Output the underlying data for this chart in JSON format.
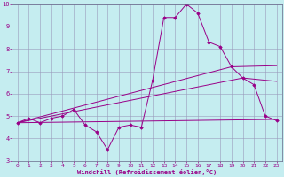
{
  "xlabel": "Windchill (Refroidissement éolien,°C)",
  "background_color": "#c5edf0",
  "grid_color": "#9999bb",
  "line_color": "#990088",
  "spine_color": "#666688",
  "xlim": [
    -0.5,
    23.5
  ],
  "ylim": [
    3,
    10
  ],
  "xticks": [
    0,
    1,
    2,
    3,
    4,
    5,
    6,
    7,
    8,
    9,
    10,
    11,
    12,
    13,
    14,
    15,
    16,
    17,
    18,
    19,
    20,
    21,
    22,
    23
  ],
  "yticks": [
    3,
    4,
    5,
    6,
    7,
    8,
    9,
    10
  ],
  "line1_x": [
    0,
    1,
    2,
    3,
    4,
    5,
    6,
    7,
    8,
    9,
    10,
    11,
    12,
    13,
    14,
    15,
    16,
    17,
    18,
    19,
    20,
    21,
    22,
    23
  ],
  "line1_y": [
    4.7,
    4.9,
    4.7,
    4.9,
    5.0,
    5.3,
    4.6,
    4.3,
    3.5,
    4.5,
    4.6,
    4.5,
    6.6,
    9.4,
    9.4,
    10.0,
    9.6,
    8.3,
    8.1,
    7.2,
    6.7,
    6.4,
    5.0,
    4.8
  ],
  "line2_x": [
    0,
    23
  ],
  "line2_y": [
    4.7,
    4.85
  ],
  "line3_x": [
    0,
    20,
    23
  ],
  "line3_y": [
    4.7,
    6.7,
    6.55
  ],
  "line4_x": [
    0,
    19,
    23
  ],
  "line4_y": [
    4.7,
    7.2,
    7.25
  ],
  "tick_fontsize": 4.5,
  "xlabel_fontsize": 5.0
}
